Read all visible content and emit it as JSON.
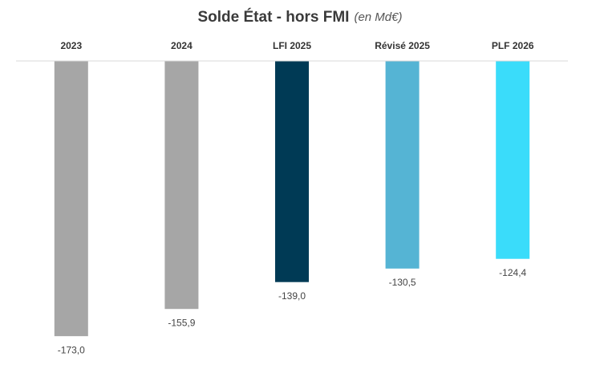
{
  "chart_data": {
    "type": "bar",
    "title": "Solde État - hors FMI",
    "subtitle": "(en Md€)",
    "categories": [
      "2023",
      "2024",
      "LFI 2025",
      "Révisé 2025",
      "PLF 2026"
    ],
    "values": [
      -173.0,
      -155.9,
      -139.0,
      -130.5,
      -124.4
    ],
    "value_labels": [
      "-173,0",
      "-155,9",
      "-139,0",
      "-130,5",
      "-124,4"
    ],
    "colors": [
      "#a6a6a6",
      "#a6a6a6",
      "#003a55",
      "#55b4d4",
      "#3adcfa"
    ],
    "ylim": [
      -180,
      0
    ]
  }
}
